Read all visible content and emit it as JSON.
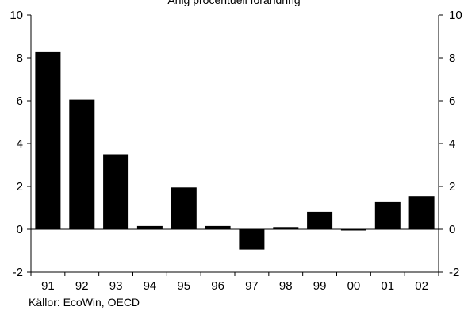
{
  "chart_data": {
    "type": "bar",
    "title": "Årlig procentuell förändring",
    "source": "Källor: EcoWin, OECD",
    "categories": [
      "91",
      "92",
      "93",
      "94",
      "95",
      "96",
      "97",
      "98",
      "99",
      "00",
      "01",
      "02"
    ],
    "values": [
      8.3,
      6.05,
      3.5,
      0.15,
      1.95,
      0.15,
      -0.95,
      0.1,
      0.82,
      -0.05,
      1.3,
      1.55
    ],
    "ylim": [
      -2,
      10
    ],
    "yticks": [
      -2,
      0,
      2,
      4,
      6,
      8,
      10
    ],
    "right_axis_ticks": true,
    "grid": false,
    "bar_color": "#000000"
  }
}
